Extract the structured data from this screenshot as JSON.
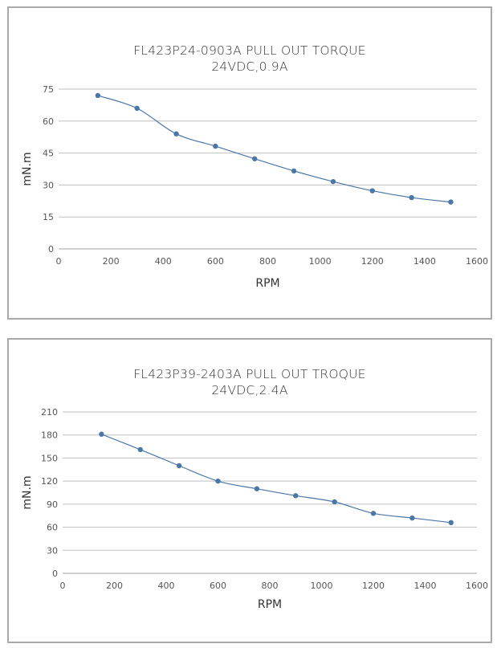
{
  "chart_data": [
    {
      "type": "line",
      "title": "FL423P24-0903A PULL OUT TORQUE",
      "subtitle": "24VDC,0.9A",
      "xlabel": "RPM",
      "ylabel": "mN.m",
      "xlim": [
        0,
        1600
      ],
      "ylim": [
        0,
        75
      ],
      "xticks": [
        0,
        200,
        400,
        600,
        800,
        1000,
        1200,
        1400,
        1600
      ],
      "yticks": [
        0,
        15,
        30,
        45,
        60,
        75
      ],
      "grid": true,
      "legend": "none",
      "series": [
        {
          "name": "Pull out torque",
          "color": "#4a76a8",
          "x": [
            150,
            300,
            450,
            600,
            750,
            900,
            1050,
            1200,
            1350,
            1500
          ],
          "y": [
            72,
            66,
            54,
            48.2,
            42.3,
            36.6,
            31.6,
            27.3,
            24.1,
            22
          ]
        }
      ]
    },
    {
      "type": "line",
      "title": "FL423P39-2403A PULL OUT TROQUE",
      "subtitle": "24VDC,2.4A",
      "xlabel": "RPM",
      "ylabel": "mN.m",
      "xlim": [
        0,
        1600
      ],
      "ylim": [
        0,
        210
      ],
      "xticks": [
        0,
        200,
        400,
        600,
        800,
        1000,
        1200,
        1400,
        1600
      ],
      "yticks": [
        0,
        30,
        60,
        90,
        120,
        150,
        180,
        210
      ],
      "grid": true,
      "legend": "none",
      "series": [
        {
          "name": "Pull out torque",
          "color": "#4a76a8",
          "x": [
            150,
            300,
            450,
            600,
            750,
            900,
            1050,
            1200,
            1350,
            1500
          ],
          "y": [
            181,
            161,
            140,
            120,
            110,
            101,
            93,
            78,
            72,
            66
          ]
        }
      ]
    }
  ]
}
